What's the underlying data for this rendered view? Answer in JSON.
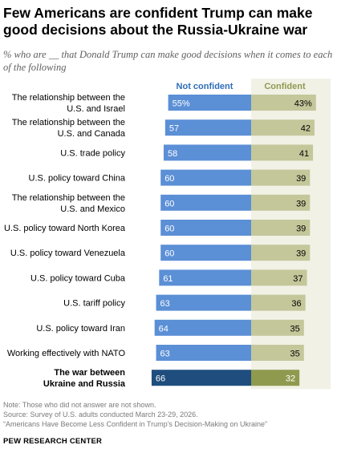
{
  "title": "Few Americans are confident Trump can make good decisions about the Russia-Ukraine war",
  "subtitle": "% who are __ that Donald Trump can make good decisions when it comes to each of the following",
  "notes": {
    "note": "Note: Those who did not answer are not shown.",
    "source": "Source: Survey of U.S. adults conducted March 23-29, 2026.",
    "report": "“Americans Have Become Less Confident in Trump’s Decision-Making on Ukraine”"
  },
  "organization": "PEW RESEARCH CENTER",
  "colors": {
    "not_confident": "#5b8fd6",
    "confident": "#c4c79a",
    "not_confident_highlight": "#1f4e7e",
    "confident_highlight": "#8f9a4f",
    "not_confident_header": "#2f6db8",
    "confident_header": "#8f9a4f"
  },
  "chart_data": {
    "type": "bar",
    "subtype": "diverging",
    "categories": [
      "The relationship between the\nU.S. and Israel",
      "The relationship between the\nU.S. and Canada",
      "U.S. trade policy",
      "U.S. policy toward China",
      "The relationship between the\nU.S. and Mexico",
      "U.S. policy toward North Korea",
      "U.S. policy toward Venezuela",
      "U.S. policy toward Cuba",
      "U.S. tariff policy",
      "U.S. policy toward Iran",
      "Working effectively with NATO",
      "The war between\nUkraine and Russia"
    ],
    "highlight_index": 11,
    "series": [
      {
        "name": "Not confident",
        "values": [
          55,
          57,
          58,
          60,
          60,
          60,
          60,
          61,
          63,
          64,
          63,
          66
        ],
        "labels": [
          "55%",
          "57",
          "58",
          "60",
          "60",
          "60",
          "60",
          "61",
          "63",
          "64",
          "63",
          "66"
        ]
      },
      {
        "name": "Confident",
        "values": [
          43,
          42,
          41,
          39,
          39,
          39,
          39,
          37,
          36,
          35,
          35,
          32
        ],
        "labels": [
          "43%",
          "42",
          "41",
          "39",
          "39",
          "39",
          "39",
          "37",
          "36",
          "35",
          "35",
          "32"
        ]
      }
    ]
  }
}
